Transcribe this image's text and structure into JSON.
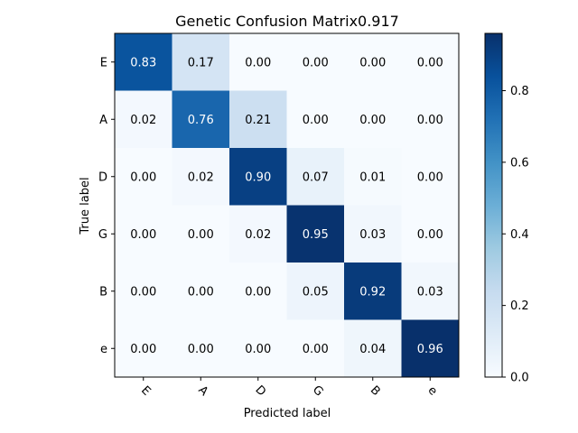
{
  "chart_data": {
    "type": "heatmap",
    "title": "Genetic Confusion Matrix0.917",
    "xlabel": "Predicted label",
    "ylabel": "True label",
    "x_categories": [
      "E",
      "A",
      "D",
      "G",
      "B",
      "e"
    ],
    "y_categories": [
      "E",
      "A",
      "D",
      "G",
      "B",
      "e"
    ],
    "values": [
      [
        0.83,
        0.17,
        0.0,
        0.0,
        0.0,
        0.0
      ],
      [
        0.02,
        0.76,
        0.21,
        0.0,
        0.0,
        0.0
      ],
      [
        0.0,
        0.02,
        0.9,
        0.07,
        0.01,
        0.0
      ],
      [
        0.0,
        0.0,
        0.02,
        0.95,
        0.03,
        0.0
      ],
      [
        0.0,
        0.0,
        0.0,
        0.05,
        0.92,
        0.03
      ],
      [
        0.0,
        0.0,
        0.0,
        0.0,
        0.04,
        0.96
      ]
    ],
    "value_format": "0.00",
    "colormap": "Blues",
    "color_range": [
      0.0,
      0.96
    ],
    "colorbar_ticks": [
      "0.0",
      "0.2",
      "0.4",
      "0.6",
      "0.8"
    ],
    "colorbar_tick_values": [
      0.0,
      0.2,
      0.4,
      0.6,
      0.8
    ],
    "x_tick_rotation": 45,
    "grid": false,
    "text_dark_color": "#000000",
    "text_light_color": "#ffffff"
  }
}
